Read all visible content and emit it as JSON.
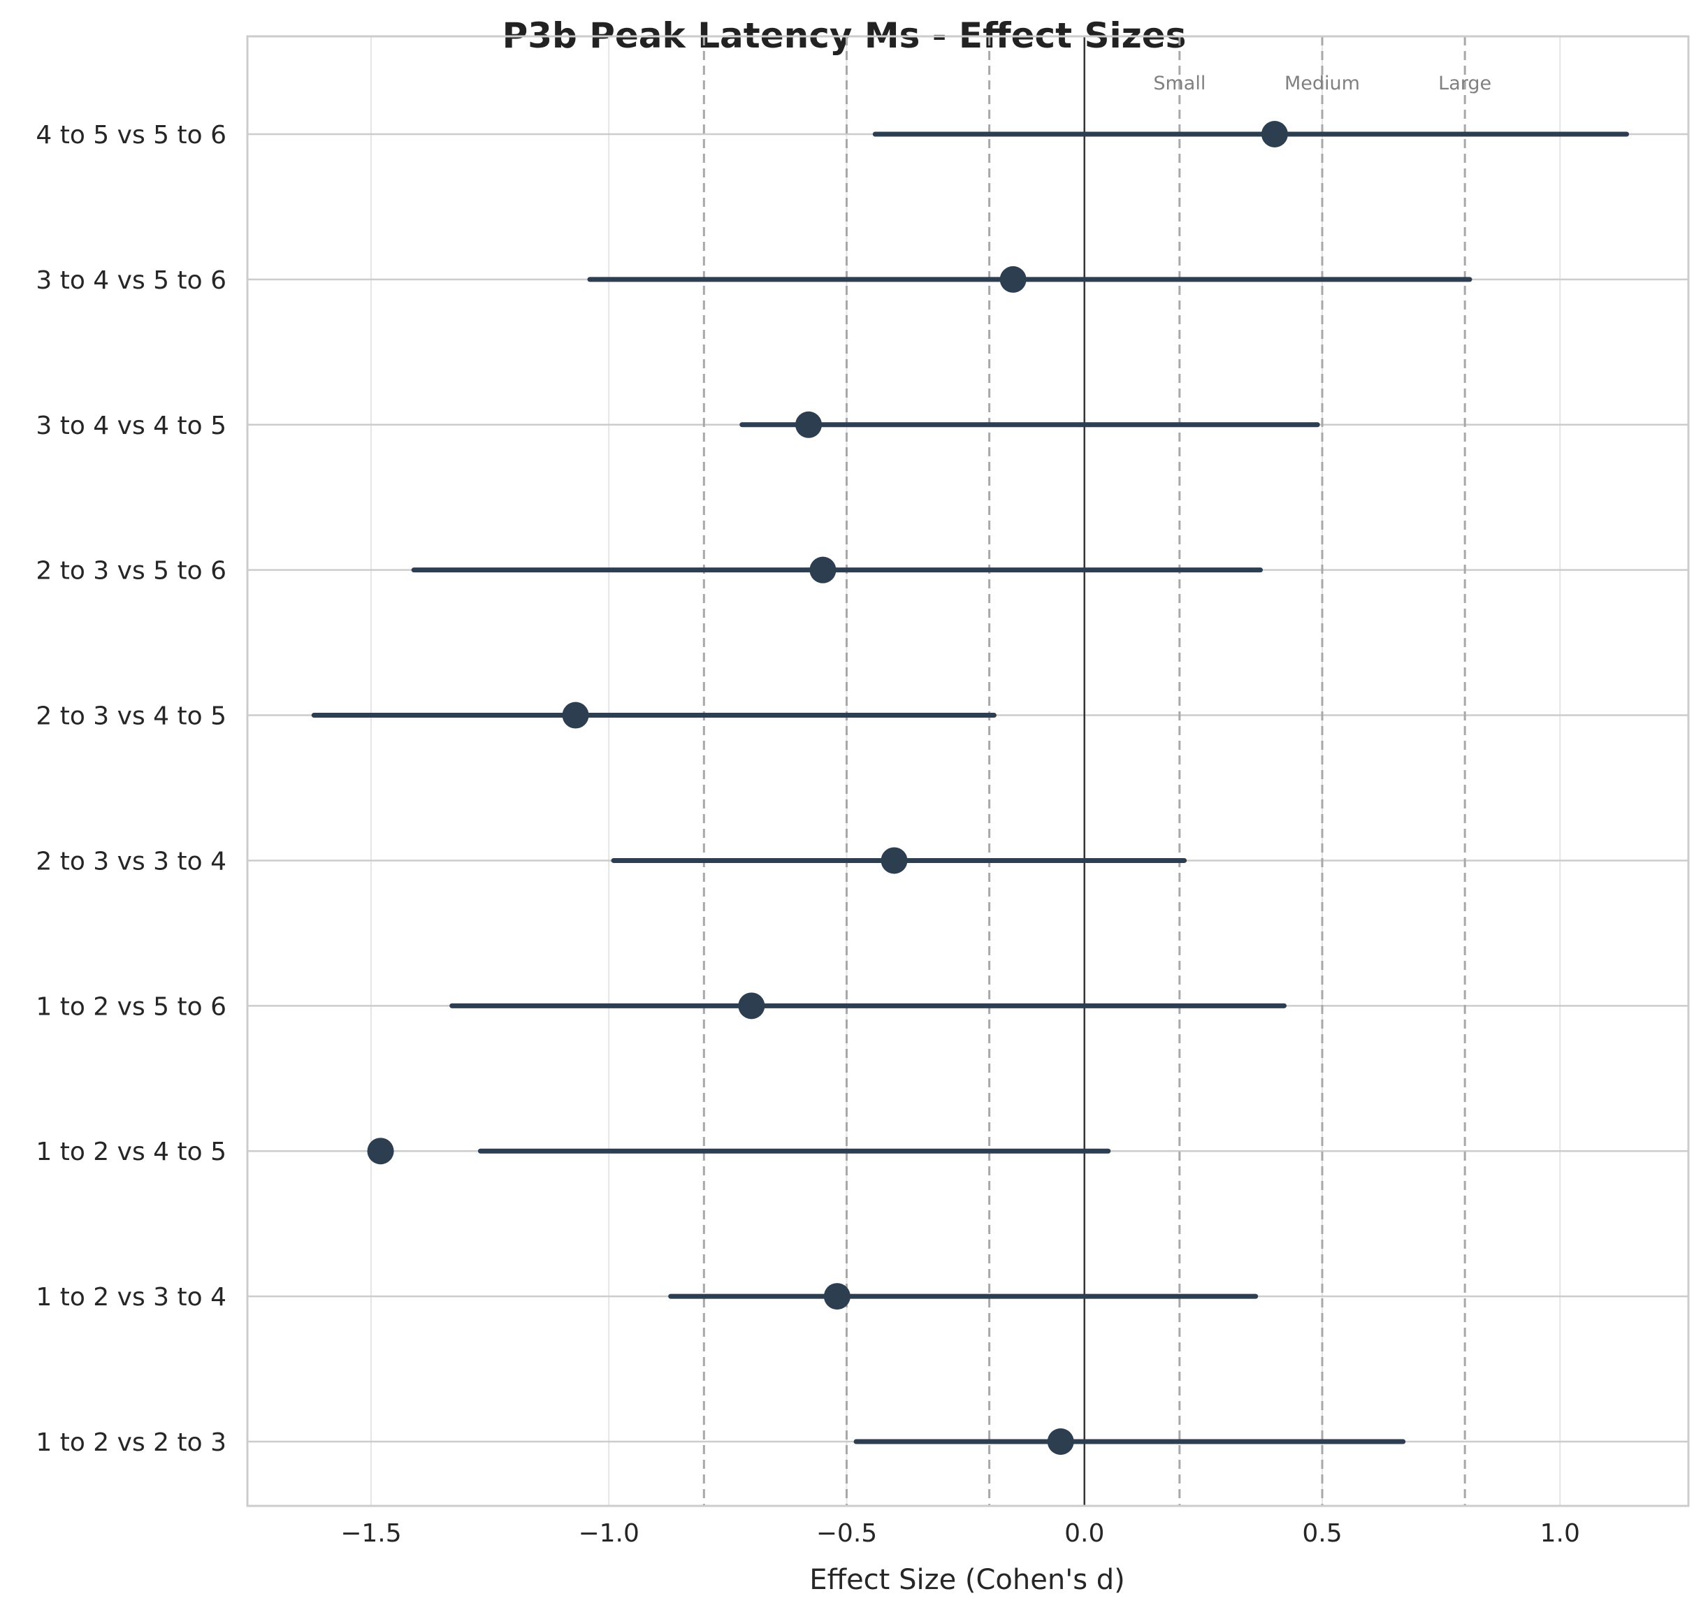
{
  "chart_data": {
    "type": "forest",
    "title": "P3b Peak Latency Ms - Effect Sizes",
    "xlabel": "Effect Size (Cohen's d)",
    "ylabel": "",
    "xlim": [
      -1.76,
      1.27
    ],
    "xticks": [
      -1.5,
      -1.0,
      -0.5,
      0.0,
      0.5,
      1.0
    ],
    "xtick_labels": [
      "−1.5",
      "−1.0",
      "−0.5",
      "0.0",
      "0.5",
      "1.0"
    ],
    "grid": true,
    "reference_lines": {
      "zero": 0.0,
      "thresholds": [
        -0.8,
        -0.5,
        -0.2,
        0.2,
        0.5,
        0.8
      ],
      "labels": [
        {
          "x": 0.2,
          "text": "Small"
        },
        {
          "x": 0.5,
          "text": "Medium"
        },
        {
          "x": 0.8,
          "text": "Large"
        }
      ]
    },
    "point_color": "#2c3e50",
    "rows": [
      {
        "label": "4 to 5 vs 5 to 6",
        "d": 0.4,
        "ci_low": -0.44,
        "ci_high": 1.14
      },
      {
        "label": "3 to 4 vs 5 to 6",
        "d": -0.15,
        "ci_low": -1.04,
        "ci_high": 0.81
      },
      {
        "label": "3 to 4 vs 4 to 5",
        "d": -0.58,
        "ci_low": -0.72,
        "ci_high": 0.49
      },
      {
        "label": "2 to 3 vs 5 to 6",
        "d": -0.55,
        "ci_low": -1.41,
        "ci_high": 0.37
      },
      {
        "label": "2 to 3 vs 4 to 5",
        "d": -1.07,
        "ci_low": -1.62,
        "ci_high": -0.19
      },
      {
        "label": "2 to 3 vs 3 to 4",
        "d": -0.4,
        "ci_low": -0.99,
        "ci_high": 0.21
      },
      {
        "label": "1 to 2 vs 5 to 6",
        "d": -0.7,
        "ci_low": -1.33,
        "ci_high": 0.42
      },
      {
        "label": "1 to 2 vs 4 to 5",
        "d": -1.48,
        "ci_low": -1.27,
        "ci_high": 0.05
      },
      {
        "label": "1 to 2 vs 3 to 4",
        "d": -0.52,
        "ci_low": -0.87,
        "ci_high": 0.36
      },
      {
        "label": "1 to 2 vs 2 to 3",
        "d": -0.05,
        "ci_low": -0.48,
        "ci_high": 0.67
      }
    ]
  }
}
